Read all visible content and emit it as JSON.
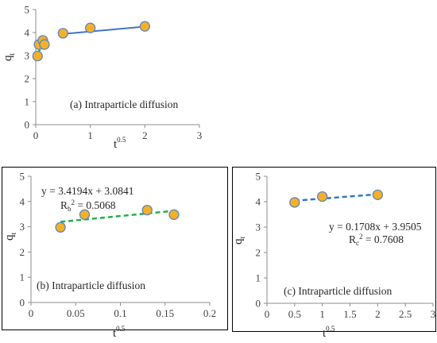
{
  "chart_data": [
    {
      "id": "a",
      "type": "scatter",
      "annotation": "(a) Intraparticle diffusion",
      "xlabel": {
        "main": "t",
        "sup": "0.5"
      },
      "ylabel": {
        "main": "q",
        "sub": "t"
      },
      "xlim": [
        0,
        3
      ],
      "ylim": [
        0,
        5
      ],
      "xticks": [
        "0",
        "1",
        "2",
        "3"
      ],
      "yticks": [
        "0",
        "1",
        "2",
        "3",
        "4",
        "5"
      ],
      "grid": false,
      "legend": "none",
      "marker_fill": "#F5B025",
      "marker_stroke": "#5B86C5",
      "series": [
        {
          "x": [
            0.033,
            0.06,
            0.13,
            0.16,
            0.5,
            1.0,
            2.0
          ],
          "y": [
            2.98,
            3.48,
            3.66,
            3.48,
            3.97,
            4.2,
            4.27
          ]
        }
      ],
      "lines": [
        {
          "x": [
            0.03,
            0.18
          ],
          "y": [
            3.08,
            3.65
          ],
          "color": "#22B04A",
          "dash": "dashed",
          "width": 2.5
        },
        {
          "x": [
            0.5,
            2.0
          ],
          "y": [
            3.94,
            4.26
          ],
          "color": "#4472C4",
          "dash": "solid",
          "width": 2
        }
      ]
    },
    {
      "id": "b",
      "type": "scatter",
      "annotation": "(b) Intraparticle diffusion",
      "equation": "y = 3.4194x + 3.0841",
      "r2": {
        "R": "R",
        "sub": "b",
        "sup": "2",
        "value": " = 0.5068"
      },
      "xlabel": {
        "main": "t",
        "sup": "0.5"
      },
      "ylabel": {
        "main": "q",
        "sub": "t"
      },
      "xlim": [
        0,
        0.2
      ],
      "ylim": [
        0,
        5
      ],
      "xticks": [
        "0",
        "0.05",
        "0.1",
        "0.15",
        "0.2"
      ],
      "yticks": [
        "0",
        "1",
        "2",
        "3",
        "4",
        "5"
      ],
      "grid": false,
      "legend": "none",
      "marker_fill": "#F5B025",
      "marker_stroke": "#5B86C5",
      "series": [
        {
          "x": [
            0.033,
            0.06,
            0.13,
            0.16
          ],
          "y": [
            2.98,
            3.48,
            3.66,
            3.48
          ]
        }
      ],
      "lines": [
        {
          "x": [
            0.033,
            0.16
          ],
          "y": [
            3.196,
            3.631
          ],
          "color": "#22B04A",
          "dash": "dashed",
          "width": 2.5
        }
      ]
    },
    {
      "id": "c",
      "type": "scatter",
      "annotation": "(c) Intraparticle diffusion",
      "equation": "y = 0.1708x + 3.9505",
      "r2": {
        "R": "R",
        "sub": "c",
        "sup": "2",
        "value": " = 0.7608"
      },
      "xlabel": {
        "main": "t",
        "sup": "0.5"
      },
      "ylabel": {
        "main": "q",
        "sub": "t"
      },
      "xlim": [
        0,
        3
      ],
      "ylim": [
        0,
        5
      ],
      "xticks": [
        "0",
        "0.5",
        "1",
        "1.5",
        "2",
        "2.5",
        "3"
      ],
      "yticks": [
        "0",
        "1",
        "2",
        "3",
        "4",
        "5"
      ],
      "grid": false,
      "legend": "none",
      "marker_fill": "#F5B025",
      "marker_stroke": "#5B86C5",
      "series": [
        {
          "x": [
            0.5,
            1.0,
            2.0
          ],
          "y": [
            3.97,
            4.2,
            4.27
          ]
        }
      ],
      "lines": [
        {
          "x": [
            0.5,
            2.0
          ],
          "y": [
            4.036,
            4.292
          ],
          "color": "#2E75C8",
          "dash": "dashed",
          "width": 2.5
        }
      ]
    }
  ]
}
